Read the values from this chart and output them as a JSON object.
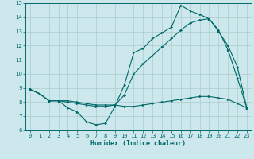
{
  "xlabel": "Humidex (Indice chaleur)",
  "bg_color": "#cce8ec",
  "grid_color": "#aacccc",
  "line_color": "#006868",
  "xlim": [
    -0.5,
    23.5
  ],
  "ylim": [
    6,
    15
  ],
  "xticks": [
    0,
    1,
    2,
    3,
    4,
    5,
    6,
    7,
    8,
    9,
    10,
    11,
    12,
    13,
    14,
    15,
    16,
    17,
    18,
    19,
    20,
    21,
    22,
    23
  ],
  "yticks": [
    6,
    7,
    8,
    9,
    10,
    11,
    12,
    13,
    14,
    15
  ],
  "series1_x": [
    0,
    1,
    2,
    3,
    4,
    5,
    6,
    7,
    8,
    9,
    10,
    11,
    12,
    13,
    14,
    15,
    16,
    17,
    18,
    19,
    20,
    21,
    22,
    23
  ],
  "series1_y": [
    8.9,
    8.6,
    8.1,
    8.1,
    7.6,
    7.3,
    6.6,
    6.4,
    6.5,
    7.7,
    9.2,
    11.5,
    11.8,
    12.5,
    12.9,
    13.3,
    14.85,
    14.45,
    14.2,
    13.9,
    13.1,
    11.7,
    9.7,
    7.6
  ],
  "series2_x": [
    0,
    1,
    2,
    3,
    4,
    5,
    6,
    7,
    8,
    9,
    10,
    11,
    12,
    13,
    14,
    15,
    16,
    17,
    18,
    19,
    20,
    21,
    22,
    23
  ],
  "series2_y": [
    8.9,
    8.6,
    8.1,
    8.1,
    8.1,
    8.0,
    7.9,
    7.8,
    7.8,
    7.8,
    7.7,
    7.7,
    7.8,
    7.9,
    8.0,
    8.1,
    8.2,
    8.3,
    8.4,
    8.4,
    8.3,
    8.2,
    7.9,
    7.6
  ],
  "series3_x": [
    0,
    1,
    2,
    3,
    4,
    5,
    6,
    7,
    8,
    9,
    10,
    11,
    12,
    13,
    14,
    15,
    16,
    17,
    18,
    19,
    20,
    21,
    22,
    23
  ],
  "series3_y": [
    8.9,
    8.6,
    8.1,
    8.1,
    8.0,
    7.9,
    7.8,
    7.7,
    7.7,
    7.8,
    8.5,
    10.0,
    10.7,
    11.3,
    11.9,
    12.5,
    13.1,
    13.6,
    13.8,
    13.9,
    13.0,
    12.0,
    10.5,
    7.6
  ],
  "tick_fontsize": 5.0,
  "xlabel_fontsize": 6.0
}
